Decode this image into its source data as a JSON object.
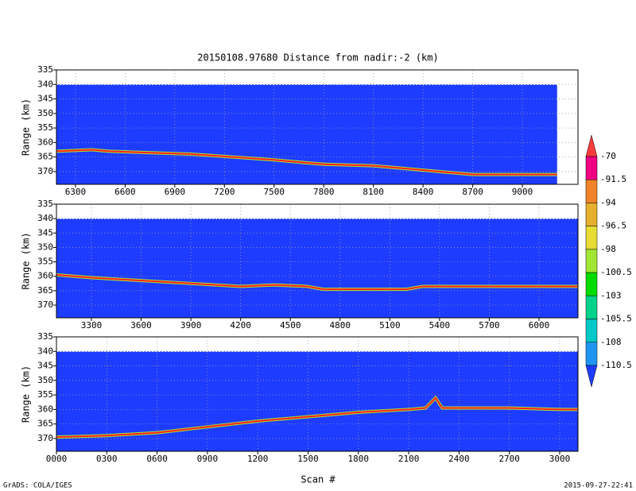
{
  "title": "20150108.97680    Distance from nadir:-2 (km)",
  "x_label": "Scan #",
  "footer_left": "GrADS: COLA/IGES",
  "footer_right": "2015-09-27-22:41",
  "colorbar": {
    "levels": [
      -70,
      -91.5,
      -94,
      -96.5,
      -98,
      -100.5,
      -103,
      -105.5,
      -108,
      -110.5
    ],
    "colors": [
      "#fa3c3c",
      "#f00082",
      "#f08228",
      "#e6af2d",
      "#e6dc32",
      "#a0e632",
      "#00dc00",
      "#00d28c",
      "#00c8c8",
      "#1e96f0",
      "#1e3cff"
    ]
  },
  "chart_data": [
    {
      "type": "line",
      "y_label": "Range (km)",
      "y_inverted": true,
      "grid": true,
      "background": "#1e3cff",
      "scan_range": [
        6185,
        9210
      ],
      "echo_top": 340,
      "xlim": [
        6185,
        9336
      ],
      "ylim": [
        335,
        374.4
      ],
      "xticks": [
        6300,
        6600,
        6900,
        7200,
        7500,
        7800,
        8100,
        8400,
        8700,
        9000
      ],
      "yticks": [
        335,
        340,
        345,
        350,
        355,
        360,
        365,
        370
      ],
      "x": [
        6185,
        6400,
        6500,
        7000,
        7500,
        7800,
        8100,
        8400,
        8700,
        9000,
        9210
      ],
      "series": [
        {
          "color": "#ff2020",
          "values": [
            363,
            362.5,
            363,
            364,
            366,
            367.5,
            368,
            369.5,
            371,
            371,
            371
          ]
        }
      ]
    },
    {
      "type": "line",
      "y_label": "Range (km)",
      "y_inverted": true,
      "grid": true,
      "background": "#1e3cff",
      "scan_range": [
        3089,
        6235
      ],
      "echo_top": 340,
      "xlim": [
        3089,
        6235
      ],
      "ylim": [
        335,
        374.4
      ],
      "xticks": [
        3300,
        3600,
        3900,
        4200,
        4500,
        4800,
        5100,
        5400,
        5700,
        6000
      ],
      "yticks": [
        335,
        340,
        345,
        350,
        355,
        360,
        365,
        370
      ],
      "x": [
        3089,
        3300,
        3600,
        3900,
        4200,
        4400,
        4600,
        4700,
        5000,
        5200,
        5300,
        5700,
        6000,
        6235
      ],
      "series": [
        {
          "color": "#ff2020",
          "values": [
            359.5,
            360.5,
            361.5,
            362.5,
            363.5,
            363,
            363.5,
            364.5,
            364.5,
            364.5,
            363.5,
            363.5,
            363.5,
            363.5
          ]
        }
      ]
    },
    {
      "type": "line",
      "y_label": "Range (km)",
      "y_inverted": true,
      "grid": true,
      "background": "#1e3cff",
      "scan_range": [
        0,
        3109
      ],
      "echo_top": 340,
      "xlim": [
        0,
        3109
      ],
      "ylim": [
        335,
        374.4
      ],
      "xticks": [
        {
          "value": 0,
          "label": "0000"
        },
        {
          "value": 300,
          "label": "0300"
        },
        {
          "value": 600,
          "label": "0600"
        },
        {
          "value": 900,
          "label": "0900"
        },
        1200,
        1500,
        1800,
        2100,
        2400,
        2700,
        3000
      ],
      "yticks": [
        335,
        340,
        345,
        350,
        355,
        360,
        365,
        370
      ],
      "x": [
        0,
        300,
        600,
        900,
        1200,
        1500,
        1800,
        2100,
        2200,
        2260,
        2300,
        2400,
        2700,
        3000,
        3109
      ],
      "series": [
        {
          "color": "#ff2020",
          "values": [
            369.5,
            369,
            368,
            366,
            364,
            362.5,
            361,
            360,
            359.5,
            356,
            359.5,
            359.5,
            359.5,
            360,
            360
          ]
        }
      ]
    }
  ]
}
